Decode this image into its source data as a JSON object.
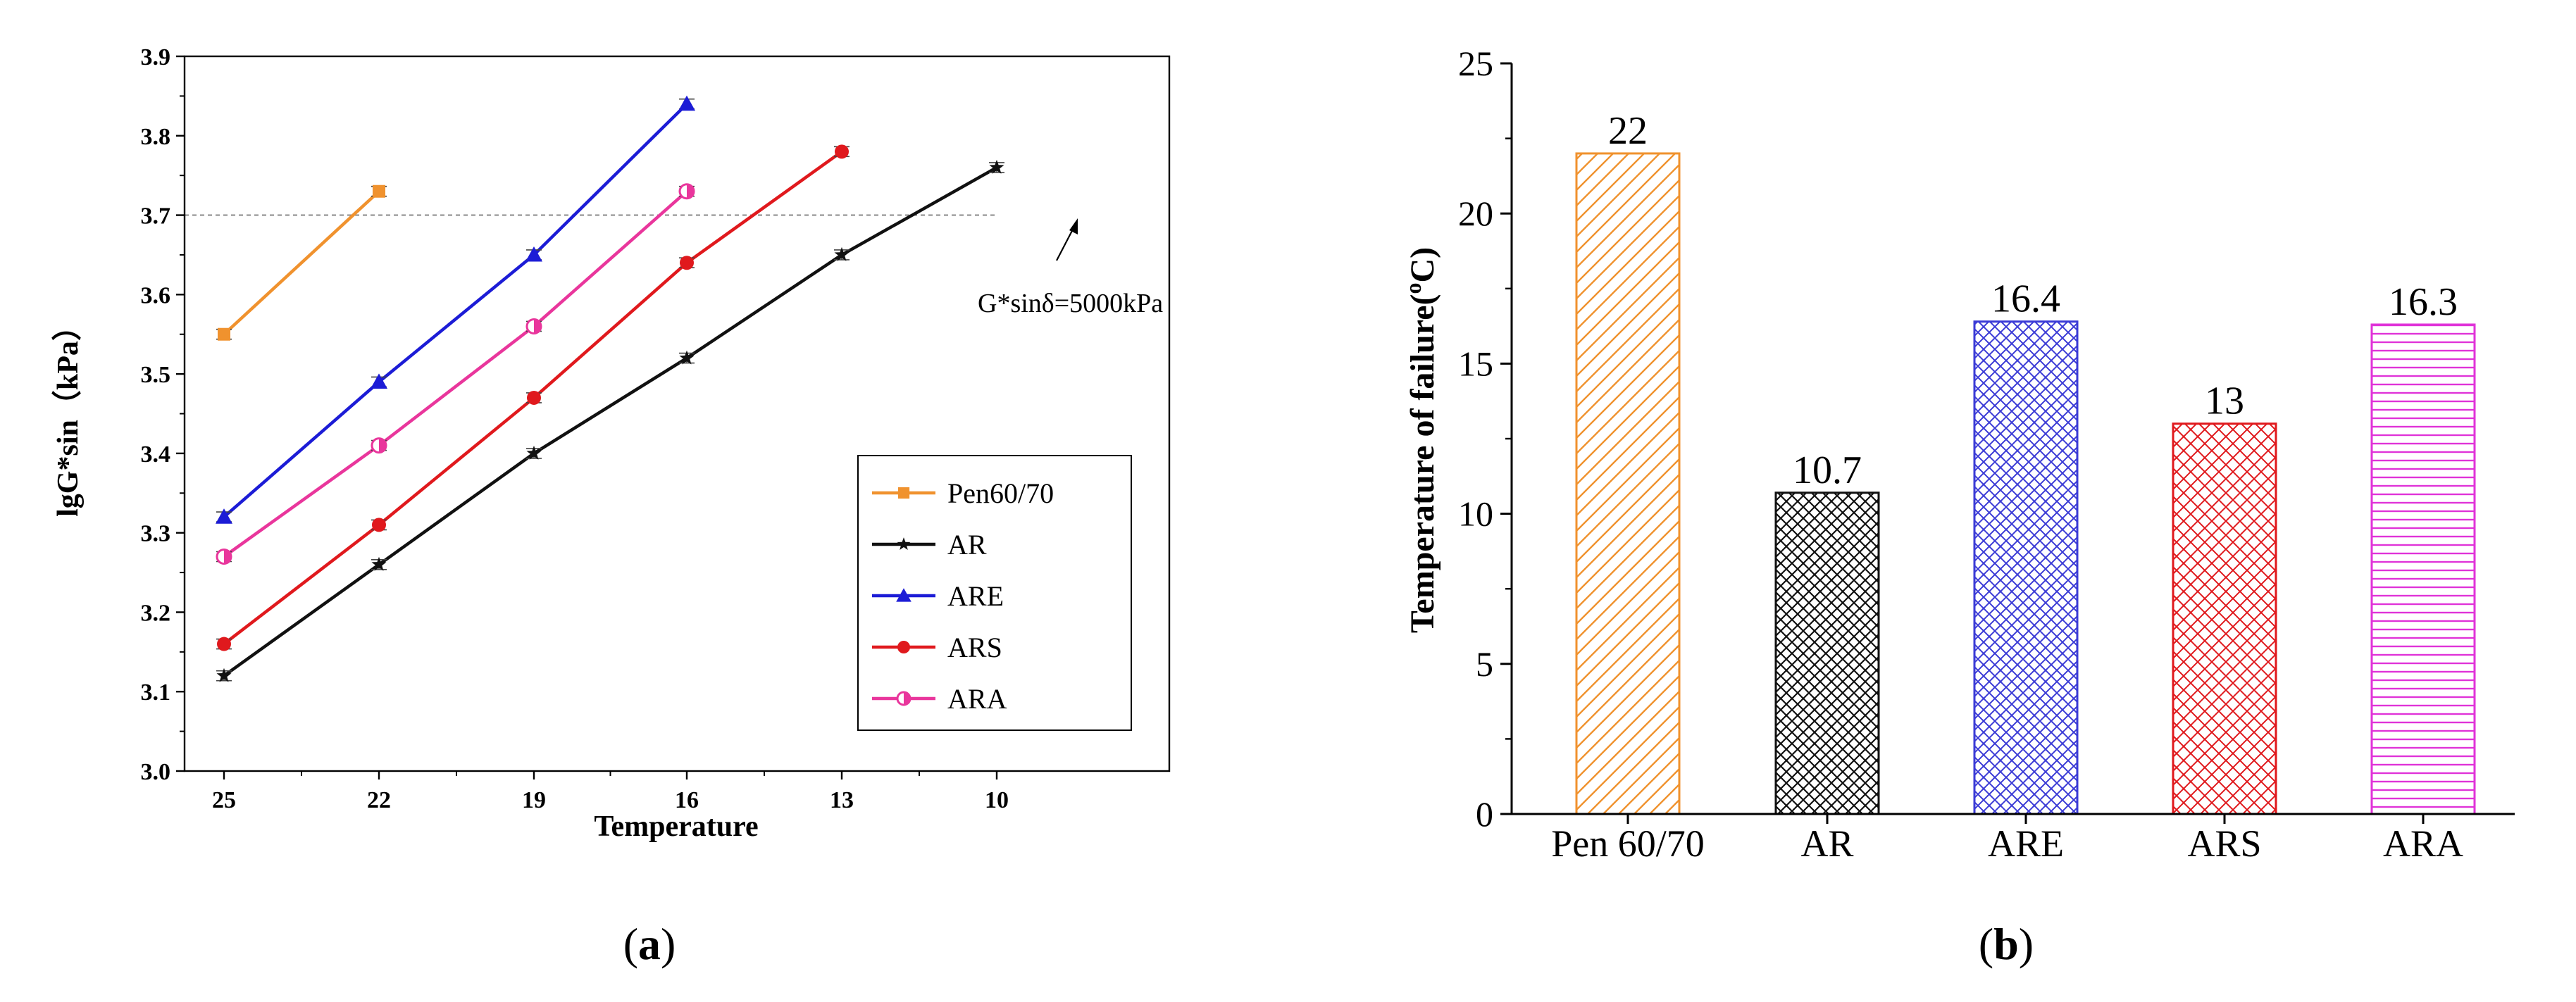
{
  "chart_data": [
    {
      "type": "line",
      "panel_label": "(a)",
      "panel_letter": "a",
      "title": "",
      "xlabel": "Temperature",
      "ylabel": "lgG*sin（kPa）",
      "x": [
        25,
        22,
        19,
        16,
        13,
        10
      ],
      "x_tick_labels": [
        "25",
        "22",
        "19",
        "16",
        "13",
        "10"
      ],
      "ylim": [
        3.0,
        3.9
      ],
      "y_ticks": [
        "3.0",
        "3.1",
        "3.2",
        "3.3",
        "3.4",
        "3.5",
        "3.6",
        "3.7",
        "3.8",
        "3.9"
      ],
      "series": [
        {
          "name": "Pen60/70",
          "color": "#f0922e",
          "marker": "square",
          "points": [
            [
              25,
              3.55
            ],
            [
              22,
              3.73
            ]
          ]
        },
        {
          "name": "AR",
          "color": "#111111",
          "marker": "star",
          "points": [
            [
              25,
              3.12
            ],
            [
              22,
              3.26
            ],
            [
              19,
              3.4
            ],
            [
              16,
              3.52
            ],
            [
              13,
              3.65
            ],
            [
              10,
              3.76
            ]
          ]
        },
        {
          "name": "ARE",
          "color": "#1c1cd6",
          "marker": "triangle",
          "points": [
            [
              25,
              3.32
            ],
            [
              22,
              3.49
            ],
            [
              19,
              3.65
            ],
            [
              16,
              3.84
            ]
          ]
        },
        {
          "name": "ARS",
          "color": "#e0191d",
          "marker": "circle",
          "points": [
            [
              25,
              3.16
            ],
            [
              22,
              3.31
            ],
            [
              19,
              3.47
            ],
            [
              16,
              3.64
            ],
            [
              13,
              3.78
            ]
          ]
        },
        {
          "name": "ARA",
          "color": "#e9369c",
          "marker": "half-circle",
          "points": [
            [
              25,
              3.27
            ],
            [
              22,
              3.41
            ],
            [
              19,
              3.56
            ],
            [
              16,
              3.73
            ]
          ]
        }
      ],
      "reference_line": {
        "y": 3.7,
        "label": "G*sinδ=5000kPa"
      },
      "legend_position": "bottom-right"
    },
    {
      "type": "bar",
      "panel_label": "(b)",
      "panel_letter": "b",
      "title": "",
      "xlabel": "",
      "ylabel": "Temperature of failure(℃)",
      "ylabel_parts": [
        "Temperature of failure(",
        "o",
        "C)"
      ],
      "categories": [
        "Pen 60/70",
        "AR",
        "ARE",
        "ARS",
        "ARA"
      ],
      "values": [
        22,
        10.7,
        16.4,
        13,
        16.3
      ],
      "value_labels": [
        "22",
        "10.7",
        "16.4",
        "13",
        "16.3"
      ],
      "colors": [
        "#f0922e",
        "#111111",
        "#3b3bd6",
        "#e0191d",
        "#e033d8"
      ],
      "patterns": [
        "diagonal",
        "crosshatch",
        "crosshatch",
        "crosshatch",
        "horizontal"
      ],
      "ylim": [
        0,
        25
      ],
      "y_ticks": [
        "0",
        "5",
        "10",
        "15",
        "20",
        "25"
      ]
    }
  ]
}
